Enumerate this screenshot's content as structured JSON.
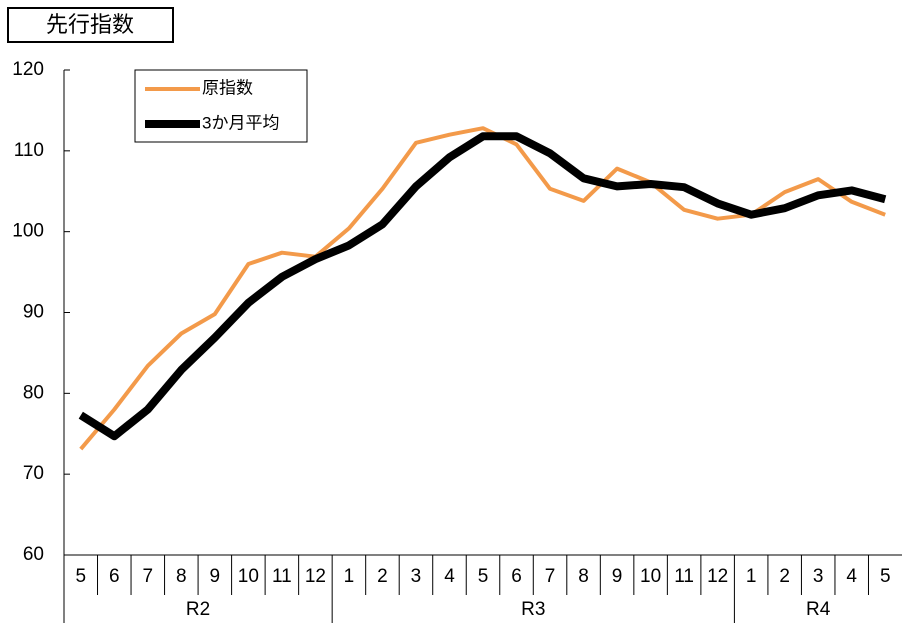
{
  "chart_data": {
    "type": "line",
    "title": "先行指数",
    "categories": [
      5,
      6,
      7,
      8,
      9,
      10,
      11,
      12,
      1,
      2,
      3,
      4,
      5,
      6,
      7,
      8,
      9,
      10,
      11,
      12,
      1,
      2,
      3,
      4,
      5
    ],
    "groups": [
      "R2",
      "R3",
      "R4"
    ],
    "series": [
      {
        "name": "原指数",
        "color": "#f39a4a",
        "width": 4,
        "values": [
          73.1,
          78.0,
          83.4,
          87.4,
          89.8,
          96.0,
          97.4,
          96.9,
          100.4,
          105.3,
          111.0,
          112.0,
          112.8,
          110.8,
          105.3,
          103.8,
          107.8,
          106.1,
          102.7,
          101.6,
          102.1,
          104.9,
          106.5,
          103.7,
          102.1
        ]
      },
      {
        "name": "3か月平均",
        "color": "#000000",
        "width": 8,
        "values": [
          77.3,
          74.7,
          78.0,
          82.9,
          86.9,
          91.2,
          94.4,
          96.6,
          98.3,
          100.9,
          105.6,
          109.2,
          111.8,
          111.8,
          109.7,
          106.6,
          105.6,
          105.9,
          105.5,
          103.5,
          102.1,
          102.9,
          104.5,
          105.1,
          104.0
        ]
      }
    ],
    "ylim": [
      60,
      120
    ],
    "yticks": [
      60,
      70,
      80,
      90,
      100,
      110,
      120
    ],
    "grid": false
  }
}
